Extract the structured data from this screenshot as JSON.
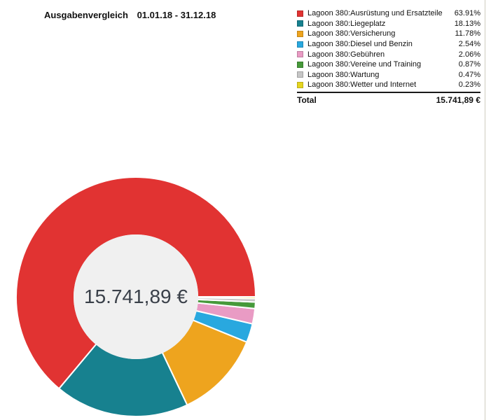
{
  "header": {
    "title": "Ausgabenvergleich",
    "period": "01.01.18 - 31.12.18"
  },
  "legend": {
    "total_label": "Total",
    "total_value": "15.741,89 €"
  },
  "chart_data": {
    "type": "pie",
    "subtype": "donut",
    "title": "Ausgabenvergleich 01.01.18 - 31.12.18",
    "center_label": "15.741,89 €",
    "total_value": "15.741,89 €",
    "categories": [
      "Lagoon 380:Ausrüstung und Ersatzteile",
      "Lagoon 380:Liegeplatz",
      "Lagoon 380:Versicherung",
      "Lagoon 380:Diesel und Benzin",
      "Lagoon 380:Gebühren",
      "Lagoon 380:Vereine und Training",
      "Lagoon 380:Wartung",
      "Lagoon 380:Wetter und Internet"
    ],
    "values": [
      63.91,
      18.13,
      11.78,
      2.54,
      2.06,
      0.87,
      0.47,
      0.23
    ],
    "value_labels": [
      "63.91%",
      "18.13%",
      "11.78%",
      "2.54%",
      "2.06%",
      "0.87%",
      "0.47%",
      "0.23%"
    ],
    "colors": [
      "#e13332",
      "#17818f",
      "#eea41e",
      "#29a8df",
      "#e99bc4",
      "#46993a",
      "#c6c6c6",
      "#e5d51f"
    ],
    "start_angle_deg": 0,
    "direction": "counterclockwise",
    "legend_position": "top-right"
  },
  "colors": {
    "divider": "#cfccc0",
    "center_fill": "#f0f0f0",
    "center_text": "#3a4049",
    "slice_border": "#ffffff"
  }
}
